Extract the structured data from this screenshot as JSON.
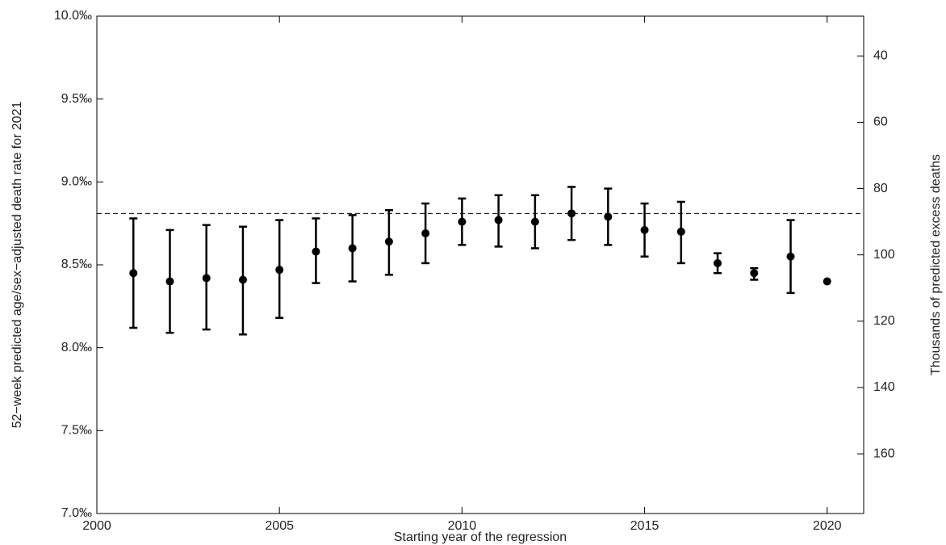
{
  "chart_data": {
    "type": "errorbar",
    "x_label": "Starting year of the regression",
    "y_label": "52−week predicted age/sex−adjusted death rate for 2021",
    "y2_label": "Thousands of predicted excess deaths",
    "xlim": [
      2000,
      2021
    ],
    "xticks": [
      2000,
      2005,
      2010,
      2015,
      2020
    ],
    "ylim": [
      7.0,
      10.0
    ],
    "yticks": [
      {
        "value": 7.0,
        "label": "7.0‰"
      },
      {
        "value": 7.5,
        "label": "7.5‰"
      },
      {
        "value": 8.0,
        "label": "8.0‰"
      },
      {
        "value": 8.5,
        "label": "8.5‰"
      },
      {
        "value": 9.0,
        "label": "9.0‰"
      },
      {
        "value": 9.5,
        "label": "9.5‰"
      },
      {
        "value": 10.0,
        "label": "10.0‰"
      }
    ],
    "y2lim": [
      178,
      28
    ],
    "y2ticks": [
      40,
      60,
      80,
      100,
      120,
      140,
      160
    ],
    "hline": 8.81,
    "color": "#000000",
    "x": [
      2001,
      2002,
      2003,
      2004,
      2005,
      2006,
      2007,
      2008,
      2009,
      2010,
      2011,
      2012,
      2013,
      2014,
      2015,
      2016,
      2017,
      2018,
      2019,
      2020
    ],
    "values": [
      8.45,
      8.4,
      8.42,
      8.41,
      8.47,
      8.58,
      8.6,
      8.64,
      8.69,
      8.76,
      8.77,
      8.76,
      8.81,
      8.79,
      8.71,
      8.7,
      8.51,
      8.45,
      8.55,
      8.4
    ],
    "lower": [
      8.12,
      8.09,
      8.11,
      8.08,
      8.18,
      8.39,
      8.4,
      8.44,
      8.51,
      8.62,
      8.61,
      8.6,
      8.65,
      8.62,
      8.55,
      8.51,
      8.45,
      8.41,
      8.33,
      null
    ],
    "upper": [
      8.78,
      8.71,
      8.74,
      8.73,
      8.77,
      8.78,
      8.8,
      8.83,
      8.87,
      8.9,
      8.92,
      8.92,
      8.97,
      8.96,
      8.87,
      8.88,
      8.57,
      8.48,
      8.77,
      null
    ]
  }
}
